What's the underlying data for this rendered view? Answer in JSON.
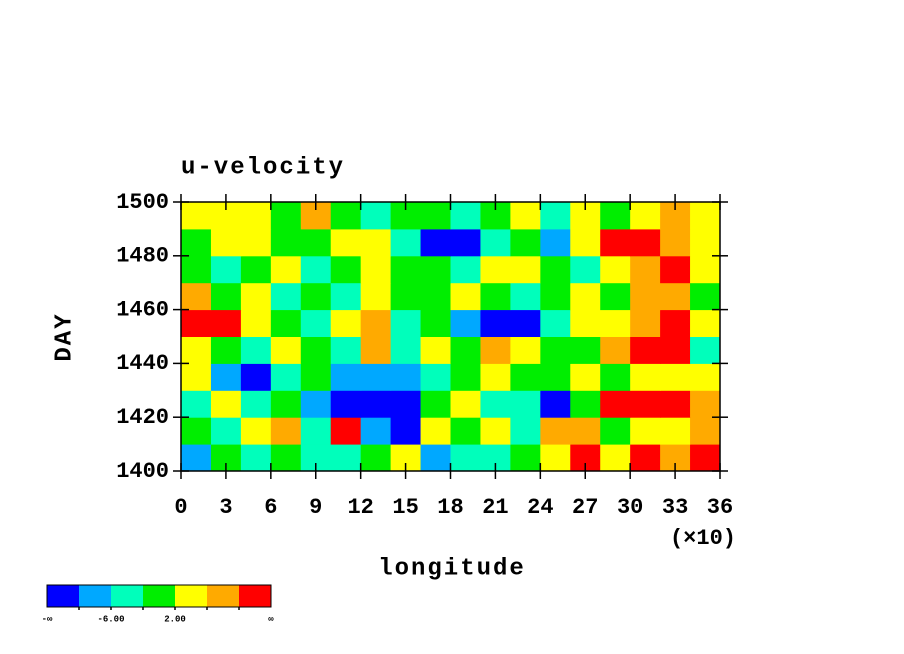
{
  "chart_data": {
    "type": "heatmap",
    "title": "u-velocity",
    "x_label": "longitude",
    "y_label": "DAY",
    "x_multiplier_label": "(×10)",
    "x": [
      1,
      3,
      5,
      7,
      9,
      11,
      13,
      15,
      17,
      19,
      21,
      23,
      25,
      27,
      29,
      31,
      33,
      35
    ],
    "y": [
      1405,
      1415,
      1425,
      1435,
      1445,
      1455,
      1465,
      1475,
      1485,
      1495
    ],
    "z": [
      [
        -9,
        -2,
        -6,
        -1,
        -3,
        -5,
        0,
        3,
        -7,
        -3,
        -4,
        0,
        5,
        11,
        3,
        10,
        6,
        12
      ],
      [
        1,
        -4,
        3,
        6,
        -6,
        10,
        -7,
        -12,
        5,
        -1,
        2,
        -3,
        6,
        9,
        -2,
        4,
        3,
        8
      ],
      [
        -3,
        2,
        -5,
        -1,
        -8,
        -11,
        -13,
        -12,
        -2,
        4,
        -3,
        -5,
        -11,
        1,
        12,
        13,
        11,
        6
      ],
      [
        5,
        -8,
        -11,
        -6,
        0,
        -7,
        -9,
        -10,
        -4,
        1,
        3,
        -2,
        -1,
        5,
        -1,
        3,
        4,
        2
      ],
      [
        3,
        -2,
        -3,
        4,
        1,
        -5,
        6,
        -3,
        2,
        -1,
        8,
        4,
        -2,
        0,
        7,
        12,
        11,
        -5
      ],
      [
        12,
        11,
        5,
        0,
        -3,
        2,
        7,
        -4,
        -1,
        -8,
        -11,
        -12,
        -3,
        4,
        2,
        6,
        11,
        3
      ],
      [
        6,
        -1,
        2,
        -6,
        1,
        -3,
        4,
        0,
        -2,
        3,
        1,
        -3,
        0,
        5,
        -1,
        9,
        6,
        0
      ],
      [
        1,
        -3,
        0,
        4,
        -4,
        0,
        3,
        -2,
        1,
        -5,
        3,
        5,
        -2,
        -4,
        2,
        7,
        11,
        4
      ],
      [
        -2,
        5,
        3,
        -1,
        1,
        3,
        2,
        -6,
        -12,
        -11,
        -3,
        -1,
        -7,
        3,
        12,
        13,
        8,
        2
      ],
      [
        2,
        4,
        3,
        0,
        8,
        1,
        -3,
        0,
        -2,
        -5,
        0,
        3,
        -4,
        2,
        1,
        4,
        6,
        3
      ]
    ],
    "xlim": [
      0,
      36
    ],
    "xticks": [
      0,
      3,
      6,
      9,
      12,
      15,
      18,
      21,
      24,
      27,
      30,
      33,
      36
    ],
    "ylim": [
      1400,
      1500
    ],
    "yticks": [
      1400,
      1420,
      1440,
      1460,
      1480,
      1500
    ],
    "colorbar": {
      "colors": [
        "#0000ff",
        "#00a8ff",
        "#00ffbb",
        "#00ee00",
        "#ffff00",
        "#ffaa00",
        "#ff0000"
      ],
      "levels": [
        -10,
        -6,
        -2,
        2,
        6,
        10
      ],
      "ticks": [
        "-∞",
        {
          "value": -6,
          "label": "-6.00"
        },
        {
          "value": 2,
          "label": "2.00"
        },
        "∞"
      ]
    }
  }
}
